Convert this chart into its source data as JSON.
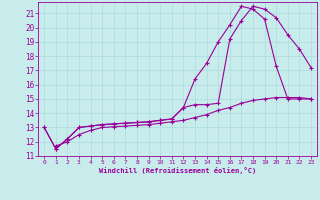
{
  "background_color": "#c8ecec",
  "line_color": "#990099",
  "grid_color": "#aadddd",
  "xlim": [
    -0.5,
    23.5
  ],
  "ylim": [
    11,
    21.8
  ],
  "yticks": [
    11,
    12,
    13,
    14,
    15,
    16,
    17,
    18,
    19,
    20,
    21
  ],
  "xticks": [
    0,
    1,
    2,
    3,
    4,
    5,
    6,
    7,
    8,
    9,
    10,
    11,
    12,
    13,
    14,
    15,
    16,
    17,
    18,
    19,
    20,
    21,
    22,
    23
  ],
  "xlabel": "Windchill (Refroidissement éolien,°C)",
  "curve1_x": [
    0,
    1,
    2,
    3,
    4,
    5,
    6,
    7,
    8,
    9,
    10,
    11,
    12,
    13,
    14,
    15,
    16,
    17,
    18,
    19,
    20,
    21,
    22,
    23
  ],
  "curve1_y": [
    13.0,
    11.5,
    12.2,
    13.0,
    13.1,
    13.2,
    13.25,
    13.3,
    13.35,
    13.4,
    13.5,
    13.6,
    14.4,
    16.4,
    17.5,
    19.0,
    20.2,
    21.5,
    21.3,
    20.6,
    17.3,
    15.0,
    15.0,
    15.0
  ],
  "curve2_x": [
    0,
    1,
    2,
    3,
    4,
    5,
    6,
    7,
    8,
    9,
    10,
    11,
    12,
    13,
    14,
    15,
    16,
    17,
    18,
    19,
    20,
    21,
    22,
    23
  ],
  "curve2_y": [
    13.0,
    11.5,
    12.2,
    13.0,
    13.1,
    13.2,
    13.25,
    13.3,
    13.35,
    13.4,
    13.5,
    13.6,
    14.4,
    14.6,
    14.6,
    14.7,
    19.2,
    20.5,
    21.5,
    21.3,
    20.7,
    19.5,
    18.5,
    17.2
  ],
  "curve3_x": [
    1,
    2,
    3,
    4,
    5,
    6,
    7,
    8,
    9,
    10,
    11,
    12,
    13,
    14,
    15,
    16,
    17,
    18,
    19,
    20,
    21,
    22,
    23
  ],
  "curve3_y": [
    11.7,
    12.0,
    12.5,
    12.8,
    13.0,
    13.05,
    13.1,
    13.15,
    13.2,
    13.3,
    13.4,
    13.5,
    13.7,
    13.9,
    14.2,
    14.4,
    14.7,
    14.9,
    15.0,
    15.1,
    15.1,
    15.1,
    15.0
  ]
}
